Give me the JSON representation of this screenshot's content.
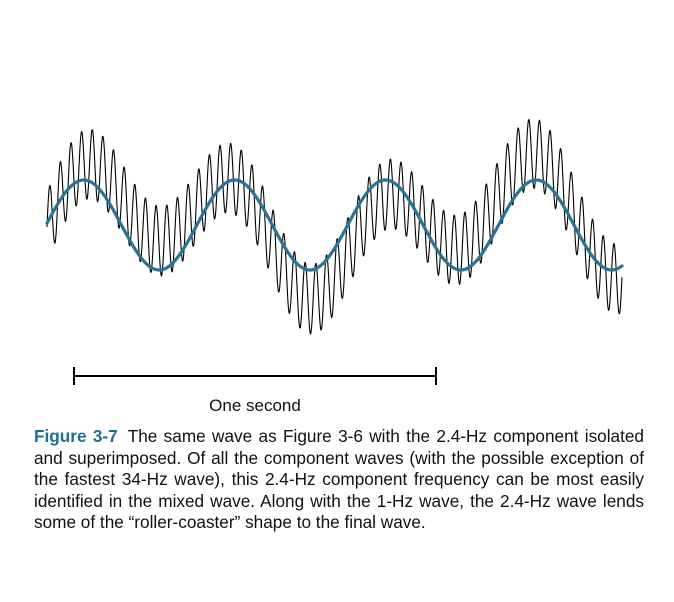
{
  "figure": {
    "scale_bar_label": "One second",
    "caption_label": "Figure 3-7",
    "caption_text": "The same wave as Figure 3-6 with the 2.4-Hz com­ponent isolated and superimposed. Of all the component waves (with the possible exception of the fastest 34-Hz wave), this 2.4-Hz component frequency can be most easily identified in the mixed wave. Along with the 1-Hz wave, the 2.4-Hz wave lends some of the “roller-coaster” shape to the final wave.",
    "colors": {
      "mixed_wave": "#000000",
      "component_wave": "#2a7394",
      "caption_label": "#1f6e8c",
      "scale_bar": "#000000"
    },
    "waves": {
      "mixed": {
        "components": [
          {
            "frequency_hz": 1.0,
            "amplitude": 30
          },
          {
            "frequency_hz": 2.4,
            "amplitude": 45
          },
          {
            "frequency_hz": 34,
            "amplitude": 35
          }
        ]
      },
      "component": {
        "frequency_hz": 2.4,
        "amplitude": 45
      }
    }
  }
}
